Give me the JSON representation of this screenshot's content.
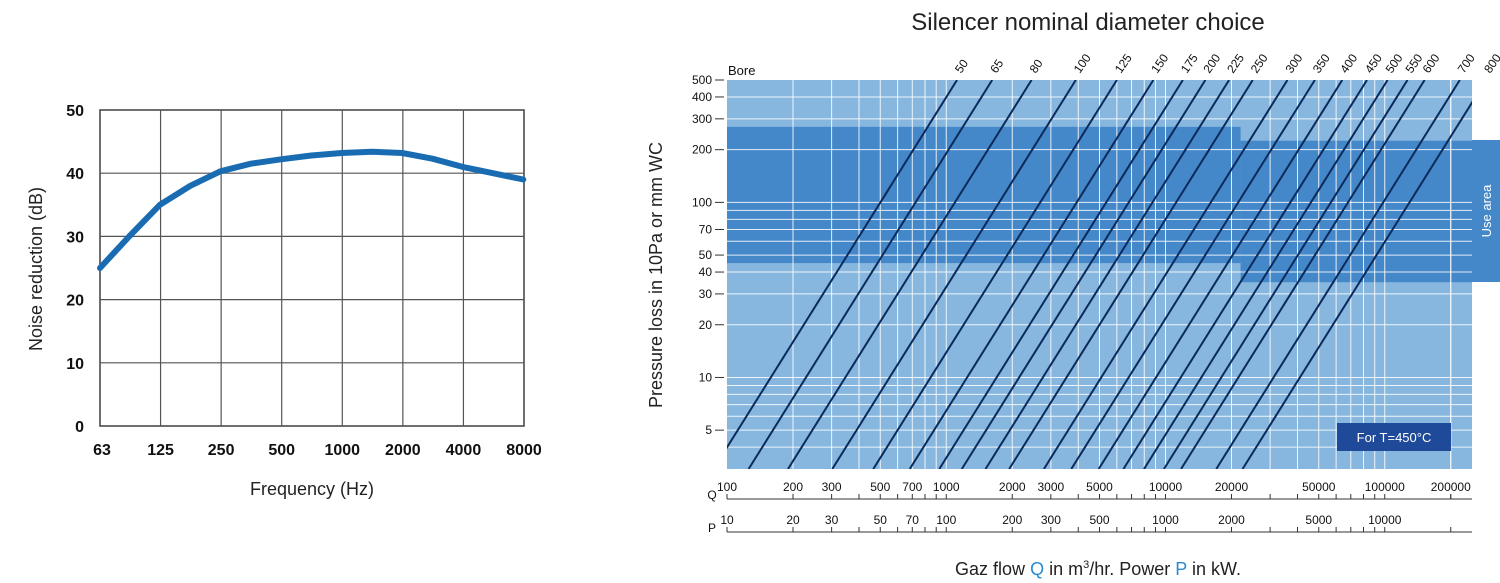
{
  "colors": {
    "curve": "#1a6cb2",
    "plot_bg": "#87b7df",
    "use_band": "#4488c9",
    "bore_line": "#0a2a5c",
    "grid": "#ffffff",
    "temp_badge": "#1e4a99",
    "accent_text": "#2a8ad4"
  },
  "chart_data": [
    {
      "type": "line",
      "title": "",
      "xlabel": "Frequency (Hz)",
      "ylabel": "Noise reduction (dB)",
      "x_scale": "log2 (octave bands)",
      "categories": [
        "63",
        "125",
        "250",
        "500",
        "1000",
        "2000",
        "4000",
        "8000"
      ],
      "ylim": [
        0,
        50
      ],
      "yticks": [
        "0",
        "10",
        "20",
        "30",
        "40",
        "50"
      ],
      "grid": true,
      "series": [
        {
          "x": [
            63,
            88,
            125,
            177,
            250,
            354,
            500,
            707,
            1000,
            1414,
            2000,
            2828,
            4000,
            5657,
            8000
          ],
          "values": [
            25,
            30,
            35,
            38,
            40.3,
            41.5,
            42.2,
            42.8,
            43.2,
            43.4,
            43.2,
            42.3,
            41,
            40,
            39
          ]
        }
      ]
    },
    {
      "type": "line",
      "title": "Silencer nominal diameter choice",
      "xlabel_parts": {
        "pre": "Gaz flow ",
        "q": "Q",
        "mid": " in m",
        "sup": "3",
        "mid2": "/hr. Power ",
        "p": "P",
        "post": " in kW."
      },
      "ylabel": "Pressure loss in 10Pa or mm WC",
      "x_scale": "log",
      "y_scale": "log",
      "xlim": [
        100,
        250000
      ],
      "ylim": [
        3,
        500
      ],
      "grid": true,
      "q_axis": {
        "label": "Q",
        "ticks": [
          100,
          200,
          300,
          500,
          700,
          1000,
          2000,
          3000,
          5000,
          10000,
          20000,
          50000,
          100000,
          200000
        ]
      },
      "p_axis": {
        "label": "P",
        "ticks": [
          10,
          20,
          30,
          50,
          70,
          100,
          200,
          300,
          500,
          1000,
          2000,
          5000,
          10000
        ],
        "q_per_p": 10
      },
      "yticks": [
        5,
        10,
        20,
        30,
        40,
        50,
        70,
        100,
        200,
        300,
        400,
        500
      ],
      "bore_label": "Bore",
      "bores": [
        {
          "name": "50",
          "q_at_5": 112
        },
        {
          "name": "65",
          "q_at_5": 162
        },
        {
          "name": "80",
          "q_at_5": 245
        },
        {
          "name": "100",
          "q_at_5": 390
        },
        {
          "name": "125",
          "q_at_5": 600
        },
        {
          "name": "150",
          "q_at_5": 880
        },
        {
          "name": "175",
          "q_at_5": 1200
        },
        {
          "name": "200",
          "q_at_5": 1520
        },
        {
          "name": "225",
          "q_at_5": 1950
        },
        {
          "name": "250",
          "q_at_5": 2500
        },
        {
          "name": "300",
          "q_at_5": 3600
        },
        {
          "name": "350",
          "q_at_5": 4800
        },
        {
          "name": "400",
          "q_at_5": 6400
        },
        {
          "name": "450",
          "q_at_5": 8300
        },
        {
          "name": "500",
          "q_at_5": 10300
        },
        {
          "name": "550",
          "q_at_5": 12700
        },
        {
          "name": "600",
          "q_at_5": 15200
        },
        {
          "name": "700",
          "q_at_5": 22000
        },
        {
          "name": "800",
          "q_at_5": 29000
        }
      ],
      "use_area": {
        "label": "Use area",
        "regions": [
          {
            "q_from": 100,
            "q_to": 22000,
            "p_low": 45,
            "p_high": 270
          },
          {
            "q_from": 22000,
            "q_to": 250000,
            "p_low": 35,
            "p_high": 225
          }
        ]
      },
      "annotation": "For T=450°C"
    }
  ]
}
